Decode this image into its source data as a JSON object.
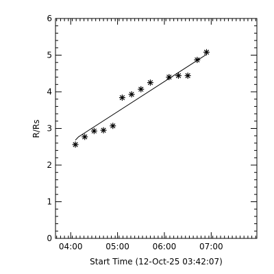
{
  "chart_data": {
    "type": "scatter",
    "title": "",
    "xlabel": "Start Time (12-Oct-25 03:42:07)",
    "ylabel": "R/Rs",
    "x_unit": "minutes",
    "xlim": [
      17,
      200
    ],
    "ylim": [
      0,
      6
    ],
    "x_ticks": [
      {
        "value": 60,
        "label": "04:00"
      },
      {
        "value": 120,
        "label": "05:00"
      },
      {
        "value": 180,
        "label": "06:00"
      },
      {
        "value": 240,
        "label": "07:00"
      }
    ],
    "y_ticks": [
      0,
      1,
      2,
      3,
      4,
      5,
      6
    ],
    "points": [
      {
        "x": 24,
        "y": 2.56
      },
      {
        "x": 36,
        "y": 2.77
      },
      {
        "x": 48,
        "y": 2.93
      },
      {
        "x": 60,
        "y": 2.95
      },
      {
        "x": 72,
        "y": 3.07
      },
      {
        "x": 84,
        "y": 3.84
      },
      {
        "x": 96,
        "y": 3.93
      },
      {
        "x": 108,
        "y": 4.07
      },
      {
        "x": 120,
        "y": 4.25
      },
      {
        "x": 144,
        "y": 4.4
      },
      {
        "x": 156,
        "y": 4.44
      },
      {
        "x": 168,
        "y": 4.44
      },
      {
        "x": 180,
        "y": 4.87
      },
      {
        "x": 192,
        "y": 5.08
      }
    ],
    "fit_line": [
      {
        "x": 24,
        "y": 2.68
      },
      {
        "x": 28,
        "y": 2.77
      },
      {
        "x": 192,
        "y": 5.02
      }
    ]
  }
}
